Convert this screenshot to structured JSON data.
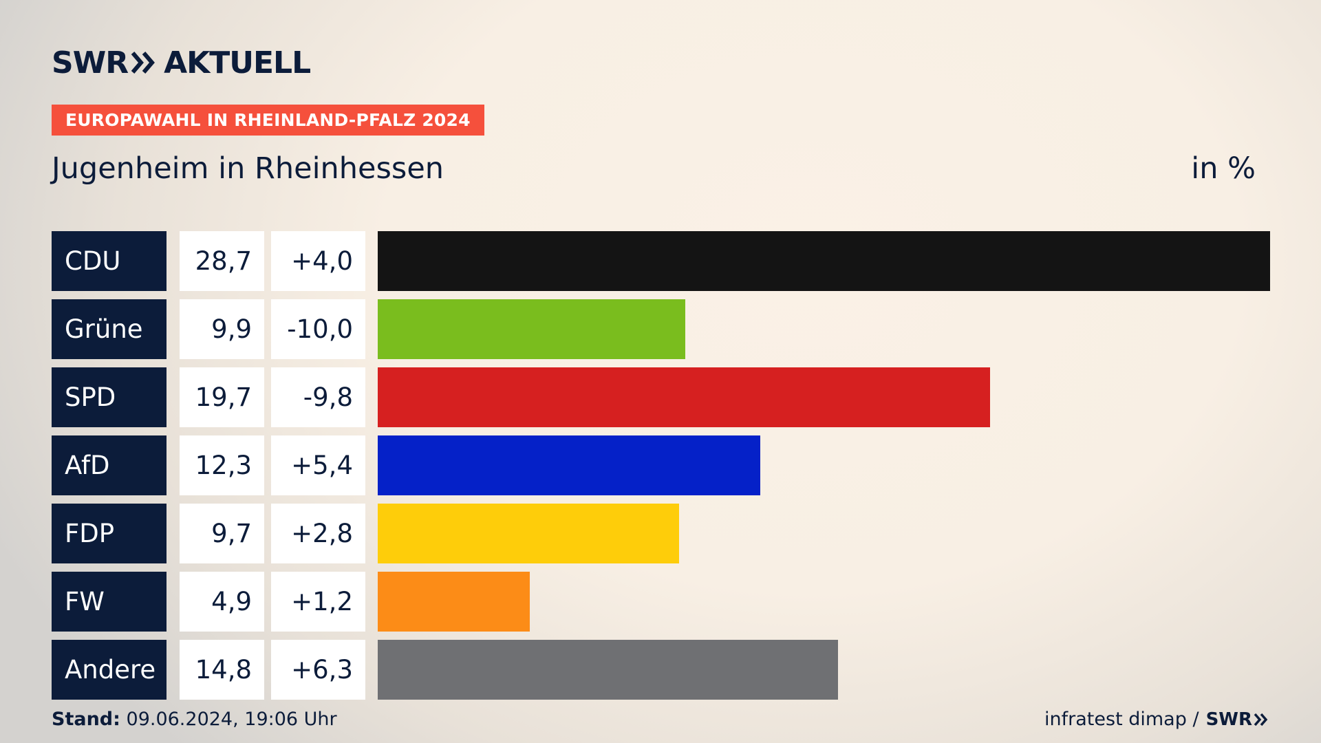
{
  "brand": {
    "logo_text_left": "SWR",
    "logo_text_right": "AKTUELL"
  },
  "banner": {
    "label": "EUROPAWAHL IN RHEINLAND-PFALZ 2024",
    "color": "#f5503c"
  },
  "header": {
    "place": "Jugenheim in Rheinhessen",
    "unit": "in %"
  },
  "footer": {
    "stand_label": "Stand:",
    "stand_value": "09.06.2024, 19:06 Uhr",
    "source": "infratest dimap /",
    "source_logo": "SWR"
  },
  "chart_data": {
    "type": "bar",
    "orientation": "horizontal",
    "categories": [
      "CDU",
      "Grüne",
      "SPD",
      "AfD",
      "FDP",
      "FW",
      "Andere"
    ],
    "values": [
      28.7,
      9.9,
      19.7,
      12.3,
      9.7,
      4.9,
      14.8
    ],
    "value_labels": [
      "28,7",
      "9,9",
      "19,7",
      "12,3",
      "9,7",
      "4,9",
      "14,8"
    ],
    "diffs": [
      4.0,
      -10.0,
      -9.8,
      5.4,
      2.8,
      1.2,
      6.3
    ],
    "diff_labels": [
      "+4,0",
      "-10,0",
      "-9,8",
      "+5,4",
      "+2,8",
      "+1,2",
      "+6,3"
    ],
    "colors": [
      "#141414",
      "#7abd1e",
      "#d62020",
      "#0521c8",
      "#fecd0a",
      "#fc8c17",
      "#6f7073"
    ],
    "xlim": [
      0,
      28.7
    ]
  }
}
